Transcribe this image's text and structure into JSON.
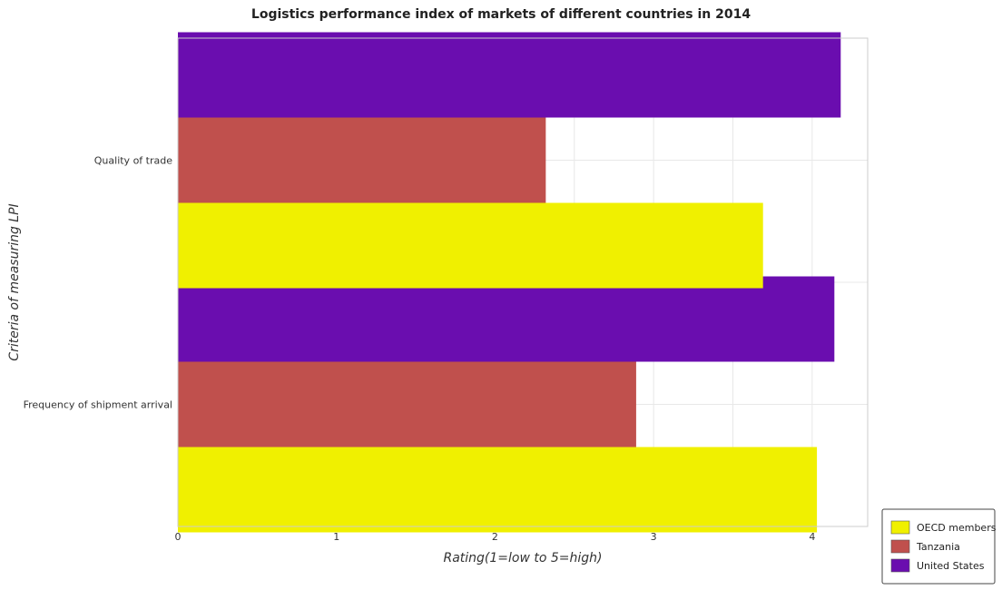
{
  "chart_data": {
    "type": "bar",
    "orientation": "horizontal",
    "title": "Logistics performance index of markets of different countries in 2014",
    "xlabel": "Rating(1=low to 5=high)",
    "ylabel": "Criteria of measuring LPI",
    "categories": [
      "Frequency of shipment arrival",
      "Quality of trade"
    ],
    "series": [
      {
        "name": "OECD members",
        "color": "#f0f000",
        "values": [
          4.03,
          3.69
        ]
      },
      {
        "name": "Tanzania",
        "color": "#c0504d",
        "values": [
          2.89,
          2.32
        ]
      },
      {
        "name": "United States",
        "color": "#6a0daf",
        "values": [
          4.14,
          4.18
        ]
      }
    ],
    "xlim": [
      0,
      4.35
    ],
    "xticks": [
      "0",
      "1",
      "2",
      "3",
      "4"
    ],
    "grid": true,
    "legend_position": "bottom-right"
  }
}
